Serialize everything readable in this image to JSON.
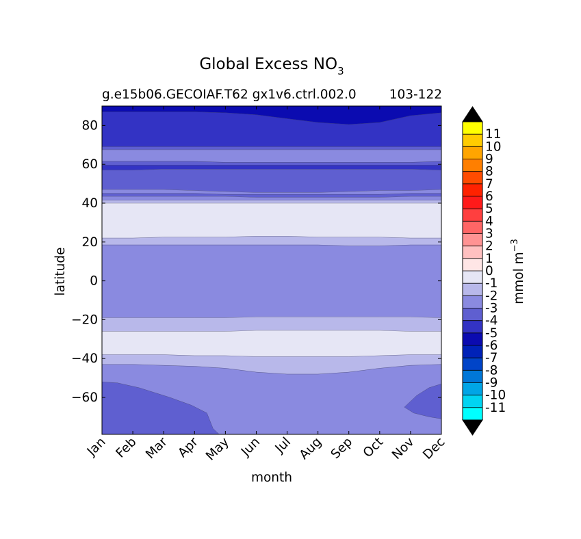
{
  "chart_data": {
    "type": "contour",
    "title": "Global Excess NO",
    "title_subscript": "3",
    "subtitle_left": "g.e15b06.GECOIAF.T62 gx1v6.ctrl.002.0",
    "subtitle_right": "103-122",
    "xlabel": "month",
    "ylabel": "latitude",
    "x_categories": [
      "Jan",
      "Feb",
      "Mar",
      "Apr",
      "May",
      "Jun",
      "Jul",
      "Aug",
      "Sep",
      "Oct",
      "Nov",
      "Dec"
    ],
    "ylim": [
      -79,
      90
    ],
    "y_ticks": [
      80,
      60,
      40,
      20,
      0,
      -20,
      -40,
      -60
    ],
    "y_tick_labels": [
      "80",
      "60",
      "40",
      "20",
      "0",
      "−20",
      "−40",
      "−60"
    ],
    "colorbar": {
      "label": "mmol m",
      "label_superscript": "−3",
      "levels": [
        11,
        10,
        9,
        8,
        7,
        6,
        5,
        4,
        3,
        2,
        1,
        0,
        -1,
        -2,
        -3,
        -4,
        -5,
        -6,
        -7,
        -8,
        -9,
        -10,
        -11
      ],
      "level_labels": [
        "11",
        "10",
        "9",
        "8",
        "7",
        "6",
        "5",
        "4",
        "3",
        "2",
        "1",
        "0",
        "-1",
        "-2",
        "-3",
        "-4",
        "-5",
        "-6",
        "-7",
        "-8",
        "-9",
        "-10",
        "-11"
      ],
      "bins": [
        {
          "lo": 11,
          "hi": 12,
          "color": "#ffff00"
        },
        {
          "lo": 10,
          "hi": 11,
          "color": "#ffcc00"
        },
        {
          "lo": 9,
          "hi": 10,
          "color": "#ffa500"
        },
        {
          "lo": 8,
          "hi": 9,
          "color": "#ff7f00"
        },
        {
          "lo": 7,
          "hi": 8,
          "color": "#ff4c00"
        },
        {
          "lo": 6,
          "hi": 7,
          "color": "#ff2200"
        },
        {
          "lo": 5,
          "hi": 6,
          "color": "#ff1a1a"
        },
        {
          "lo": 4,
          "hi": 5,
          "color": "#ff3f3f"
        },
        {
          "lo": 3,
          "hi": 4,
          "color": "#ff6666"
        },
        {
          "lo": 2,
          "hi": 3,
          "color": "#ff9393"
        },
        {
          "lo": 1,
          "hi": 2,
          "color": "#ffc0c0"
        },
        {
          "lo": 0,
          "hi": 1,
          "color": "#ffe6e6"
        },
        {
          "lo": -1,
          "hi": 0,
          "color": "#e6e6f5"
        },
        {
          "lo": -2,
          "hi": -1,
          "color": "#b8b8ea"
        },
        {
          "lo": -3,
          "hi": -2,
          "color": "#8a8ae0"
        },
        {
          "lo": -4,
          "hi": -3,
          "color": "#5f5fd0"
        },
        {
          "lo": -5,
          "hi": -4,
          "color": "#3333c4"
        },
        {
          "lo": -6,
          "hi": -5,
          "color": "#0b0bb0"
        },
        {
          "lo": -7,
          "hi": -6,
          "color": "#0022b8"
        },
        {
          "lo": -8,
          "hi": -7,
          "color": "#0044c8"
        },
        {
          "lo": -9,
          "hi": -8,
          "color": "#0077d8"
        },
        {
          "lo": -10,
          "hi": -9,
          "color": "#00a5e6"
        },
        {
          "lo": -11,
          "hi": -10,
          "color": "#00d4f2"
        },
        {
          "lo": -12,
          "hi": -11,
          "color": "#00ffff"
        }
      ],
      "over_color": "#000000",
      "under_color": "#000000"
    },
    "bands": [
      {
        "value": -5.5,
        "color": "#0b0bb0",
        "y1": [
          90,
          90,
          90,
          90,
          90,
          90,
          90,
          90,
          90,
          90,
          90,
          90
        ],
        "y2": [
          87,
          87,
          87,
          87,
          86.5,
          85.5,
          83.5,
          81.5,
          80.5,
          81.5,
          85,
          86.5
        ]
      },
      {
        "value": -4.5,
        "color": "#3333c4",
        "y1": [
          87,
          87,
          87,
          87,
          86.5,
          85.5,
          83.5,
          81.5,
          80.5,
          81.5,
          85,
          86.5
        ],
        "y2": [
          69,
          69,
          69,
          69,
          69,
          69,
          69,
          69,
          69,
          69,
          69,
          69
        ]
      },
      {
        "value": -3.5,
        "color": "#5f5fd0",
        "y1": [
          69,
          69,
          69,
          69,
          69,
          69,
          69,
          69,
          69,
          69,
          69,
          69
        ],
        "y2": [
          67.5,
          67.5,
          67.5,
          67.5,
          67.5,
          67.5,
          67.5,
          67.5,
          67.5,
          67.5,
          67.5,
          67.5
        ]
      },
      {
        "value": -2.5,
        "color": "#8a8ae0",
        "y1": [
          67.5,
          67.5,
          67.5,
          67.5,
          67.5,
          67.5,
          67.5,
          67.5,
          67.5,
          67.5,
          67.5,
          67.5
        ],
        "y2": [
          61.5,
          61.5,
          61.5,
          61.5,
          61,
          61,
          61,
          61,
          61,
          61,
          61,
          61.5
        ]
      },
      {
        "value": -3.5,
        "color": "#5f5fd0",
        "y1": [
          61.5,
          61.5,
          61.5,
          61.5,
          61,
          61,
          61,
          61,
          61,
          61,
          61,
          61.5
        ],
        "y2": [
          59.5,
          59.5,
          59.5,
          59.5,
          59.5,
          59.5,
          59.5,
          59.5,
          59.5,
          59.5,
          59.5,
          59.5
        ]
      },
      {
        "value": -4.5,
        "color": "#3333c4",
        "y1": [
          59.5,
          59.5,
          59.5,
          59.5,
          59.5,
          59.5,
          59.5,
          59.5,
          59.5,
          59.5,
          59.5,
          59.5
        ],
        "y2": [
          57,
          57,
          57.5,
          57.5,
          57.5,
          57.5,
          57.5,
          57.5,
          57.5,
          57.5,
          57.5,
          57
        ]
      },
      {
        "value": -3.5,
        "color": "#5f5fd0",
        "y1": [
          57,
          57,
          57.5,
          57.5,
          57.5,
          57.5,
          57.5,
          57.5,
          57.5,
          57.5,
          57.5,
          57
        ],
        "y2": [
          47,
          47,
          47,
          46.5,
          46,
          45.5,
          45.5,
          45.5,
          46,
          46.5,
          46.5,
          47
        ]
      },
      {
        "value": -2.5,
        "color": "#8a8ae0",
        "y1": [
          47,
          47,
          47,
          46.5,
          46,
          45.5,
          45.5,
          45.5,
          46,
          46.5,
          46.5,
          47
        ],
        "y2": [
          45,
          45,
          45,
          45,
          44.5,
          44.5,
          44.5,
          44.5,
          44.5,
          44.5,
          45,
          45
        ]
      },
      {
        "value": -3.5,
        "color": "#5f5fd0",
        "y1": [
          45,
          45,
          45,
          45,
          44.5,
          44.5,
          44.5,
          44.5,
          44.5,
          44.5,
          45,
          45
        ],
        "y2": [
          43.5,
          43.5,
          43.5,
          43.5,
          43.5,
          43,
          43,
          43,
          43,
          43,
          43.5,
          43.5
        ]
      },
      {
        "value": -2.5,
        "color": "#8a8ae0",
        "y1": [
          43.5,
          43.5,
          43.5,
          43.5,
          43.5,
          43,
          43,
          43,
          43,
          43,
          43.5,
          43.5
        ],
        "y2": [
          41.5,
          41.5,
          41.5,
          41.5,
          41.5,
          41.5,
          41.5,
          41.5,
          41.5,
          41.5,
          41.5,
          41.5
        ]
      },
      {
        "value": -1.5,
        "color": "#b8b8ea",
        "y1": [
          41.5,
          41.5,
          41.5,
          41.5,
          41.5,
          41.5,
          41.5,
          41.5,
          41.5,
          41.5,
          41.5,
          41.5
        ],
        "y2": [
          40,
          40,
          40,
          40,
          40,
          40,
          40,
          40,
          40,
          40,
          40,
          40
        ]
      },
      {
        "value": -0.5,
        "color": "#e6e6f5",
        "y1": [
          40,
          40,
          40,
          40,
          40,
          40,
          40,
          40,
          40,
          40,
          40,
          40
        ],
        "y2": [
          22,
          22,
          22.5,
          22.5,
          22.5,
          23,
          23,
          22.5,
          22.5,
          22.5,
          22,
          22
        ]
      },
      {
        "value": -1.5,
        "color": "#b8b8ea",
        "y1": [
          22,
          22,
          22.5,
          22.5,
          22.5,
          23,
          23,
          22.5,
          22.5,
          22.5,
          22,
          22
        ],
        "y2": [
          18.5,
          18.5,
          18.5,
          18.5,
          18.5,
          18.5,
          18.5,
          18.5,
          18,
          18,
          18.5,
          18.5
        ]
      },
      {
        "value": -2.5,
        "color": "#8a8ae0",
        "y1": [
          18.5,
          18.5,
          18.5,
          18.5,
          18.5,
          18.5,
          18.5,
          18.5,
          18,
          18,
          18.5,
          18.5
        ],
        "y2": [
          -19,
          -19,
          -19,
          -19,
          -19,
          -18.5,
          -18.5,
          -18.5,
          -18.5,
          -18.5,
          -18.5,
          -19
        ]
      },
      {
        "value": -1.5,
        "color": "#b8b8ea",
        "y1": [
          -19,
          -19,
          -19,
          -19,
          -19,
          -18.5,
          -18.5,
          -18.5,
          -18.5,
          -18.5,
          -18.5,
          -19
        ],
        "y2": [
          -26,
          -26,
          -26,
          -26,
          -26,
          -25.5,
          -25.5,
          -25.5,
          -25.5,
          -25.5,
          -26,
          -26
        ]
      },
      {
        "value": -0.5,
        "color": "#e6e6f5",
        "y1": [
          -26,
          -26,
          -26,
          -26,
          -26,
          -25.5,
          -25.5,
          -25.5,
          -25.5,
          -25.5,
          -26,
          -26
        ],
        "y2": [
          -38,
          -38,
          -38,
          -38.5,
          -38.5,
          -39,
          -39,
          -39,
          -39,
          -38.5,
          -38,
          -38
        ]
      },
      {
        "value": -1.5,
        "color": "#b8b8ea",
        "y1": [
          -38,
          -38,
          -38,
          -38.5,
          -38.5,
          -39,
          -39,
          -39,
          -39,
          -38.5,
          -38,
          -38
        ],
        "y2": [
          -43,
          -43,
          -43.5,
          -44,
          -45,
          -47,
          -48,
          -48,
          -47,
          -45,
          -43.5,
          -43
        ]
      },
      {
        "value": -2.5,
        "color": "#8a8ae0",
        "y1": [
          -43,
          -43,
          -43.5,
          -44,
          -45,
          -47,
          -48,
          -48,
          -47,
          -45,
          -43.5,
          -43
        ],
        "y2": [
          -79,
          -79,
          -79,
          -79,
          -79,
          -79,
          -79,
          -79,
          -79,
          -79,
          -79,
          -79
        ]
      }
    ],
    "patches": [
      {
        "value": -3.5,
        "color": "#5f5fd0",
        "points": [
          [
            0,
            -52
          ],
          [
            0.5,
            -52.5
          ],
          [
            1.2,
            -55
          ],
          [
            2.2,
            -60
          ],
          [
            2.9,
            -64
          ],
          [
            3.4,
            -68
          ],
          [
            3.5,
            -72
          ],
          [
            3.6,
            -76
          ],
          [
            3.8,
            -79
          ],
          [
            0,
            -79
          ]
        ]
      },
      {
        "value": -3.5,
        "color": "#5f5fd0",
        "points": [
          [
            11,
            -53
          ],
          [
            10.6,
            -55
          ],
          [
            10.2,
            -59
          ],
          [
            9.8,
            -65
          ],
          [
            10.1,
            -68
          ],
          [
            10.6,
            -70
          ],
          [
            11,
            -71
          ]
        ]
      }
    ]
  }
}
